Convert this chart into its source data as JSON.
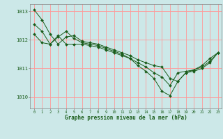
{
  "title": "Graphe pression niveau de la mer (hPa)",
  "background_color": "#cce8e8",
  "grid_color": "#ff9999",
  "line_color": "#1a5c1a",
  "marker_color": "#1a5c1a",
  "xlim": [
    -0.5,
    23.5
  ],
  "ylim": [
    1009.6,
    1013.25
  ],
  "yticks": [
    1010,
    1011,
    1012,
    1013
  ],
  "xticks": [
    0,
    1,
    2,
    3,
    4,
    5,
    6,
    7,
    8,
    9,
    10,
    11,
    12,
    13,
    14,
    15,
    16,
    17,
    18,
    19,
    20,
    21,
    22,
    23
  ],
  "series": [
    [
      1013.05,
      1012.7,
      1012.2,
      1011.85,
      1012.1,
      1012.15,
      1011.95,
      1011.9,
      1011.85,
      1011.75,
      1011.65,
      1011.55,
      1011.45,
      1011.3,
      1011.2,
      1011.1,
      1011.05,
      1010.65,
      1010.55,
      1010.85,
      1010.9,
      1011.0,
      1011.2,
      1011.55
    ],
    [
      1012.55,
      1012.3,
      1011.85,
      1012.1,
      1012.3,
      1012.05,
      1011.9,
      1011.85,
      1011.8,
      1011.7,
      1011.6,
      1011.5,
      1011.35,
      1011.1,
      1010.9,
      1010.65,
      1010.2,
      1010.05,
      1010.55,
      1010.85,
      1010.95,
      1011.1,
      1011.35,
      1011.55
    ],
    [
      1012.2,
      1011.9,
      1011.85,
      1012.15,
      1011.85,
      1011.85,
      1011.85,
      1011.8,
      1011.75,
      1011.65,
      1011.55,
      1011.45,
      1011.35,
      1011.2,
      1011.05,
      1010.85,
      1010.7,
      1010.4,
      1010.85,
      1010.9,
      1010.95,
      1011.05,
      1011.25,
      1011.55
    ]
  ]
}
